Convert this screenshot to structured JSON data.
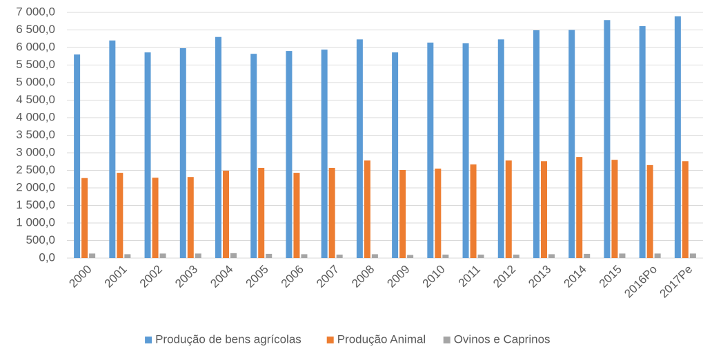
{
  "chart_data": {
    "type": "bar",
    "categories": [
      "2000",
      "2001",
      "2002",
      "2003",
      "2004",
      "2005",
      "2006",
      "2007",
      "2008",
      "2009",
      "2010",
      "2011",
      "2012",
      "2013",
      "2014",
      "2015",
      "2016Po",
      "2017Pe"
    ],
    "series": [
      {
        "name": "Produção de bens agrícolas",
        "color": "#5b9bd5",
        "values": [
          5800,
          6200,
          5860,
          5980,
          6300,
          5820,
          5900,
          5940,
          6230,
          5860,
          6140,
          6120,
          6230,
          6490,
          6500,
          6780,
          6610,
          6890
        ]
      },
      {
        "name": "Produção Animal",
        "color": "#ed7d31",
        "values": [
          2280,
          2430,
          2290,
          2310,
          2490,
          2570,
          2430,
          2570,
          2780,
          2510,
          2550,
          2670,
          2780,
          2760,
          2880,
          2800,
          2650,
          2760
        ]
      },
      {
        "name": "Ovinos e Caprinos",
        "color": "#a5a5a5",
        "values": [
          130,
          110,
          130,
          130,
          140,
          120,
          110,
          100,
          110,
          90,
          100,
          100,
          100,
          110,
          120,
          130,
          130,
          130
        ]
      }
    ],
    "ylim": [
      0,
      7000
    ],
    "yticks": [
      {
        "value": 0,
        "label": "0,0"
      },
      {
        "value": 500,
        "label": "500,0"
      },
      {
        "value": 1000,
        "label": "1 000,0"
      },
      {
        "value": 1500,
        "label": "1 500,0"
      },
      {
        "value": 2000,
        "label": "2 000,0"
      },
      {
        "value": 2500,
        "label": "2 500,0"
      },
      {
        "value": 3000,
        "label": "3 000,0"
      },
      {
        "value": 3500,
        "label": "3 500,0"
      },
      {
        "value": 4000,
        "label": "4 000,0"
      },
      {
        "value": 4500,
        "label": "4 500,0"
      },
      {
        "value": 5000,
        "label": "5 000,0"
      },
      {
        "value": 5500,
        "label": "5 500,0"
      },
      {
        "value": 6000,
        "label": "6 000,0"
      },
      {
        "value": 6500,
        "label": "6 500,0"
      },
      {
        "value": 7000,
        "label": "7 000,0"
      }
    ],
    "grid": true,
    "legend": "bottom"
  }
}
